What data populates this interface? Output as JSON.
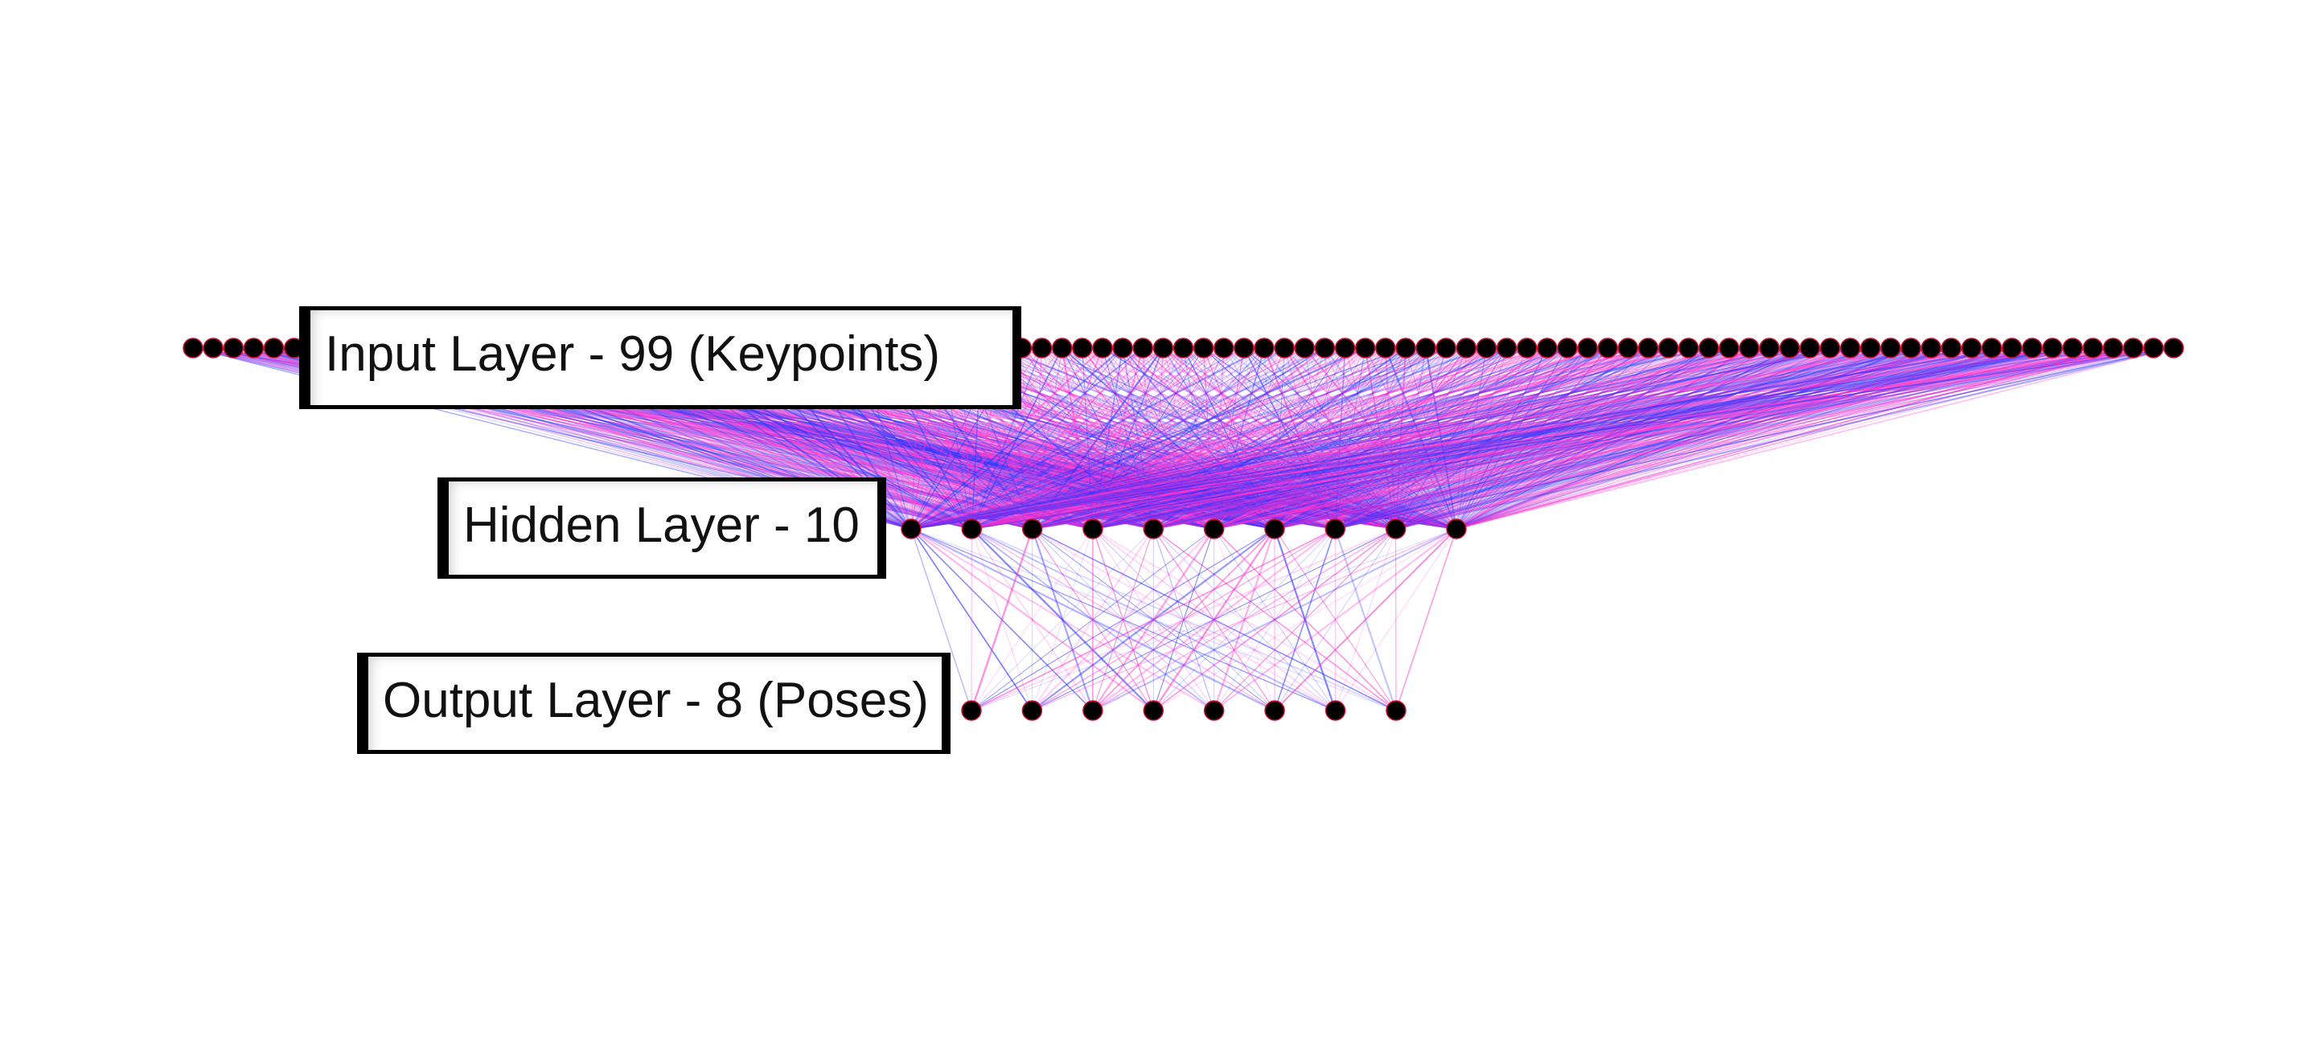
{
  "diagram": {
    "type": "neural-network-architecture",
    "layers": [
      {
        "label": "Input Layer - 99 (Keypoints)",
        "neurons": 99
      },
      {
        "label": "Hidden Layer - 10",
        "neurons": 10
      },
      {
        "label": "Output Layer - 8 (Poses)",
        "neurons": 8
      }
    ],
    "connections": "fully-connected",
    "node_color": "#000000",
    "node_outline_color": "#c8102e",
    "edge_colors": [
      "#ff33cc",
      "#3333ff"
    ]
  }
}
